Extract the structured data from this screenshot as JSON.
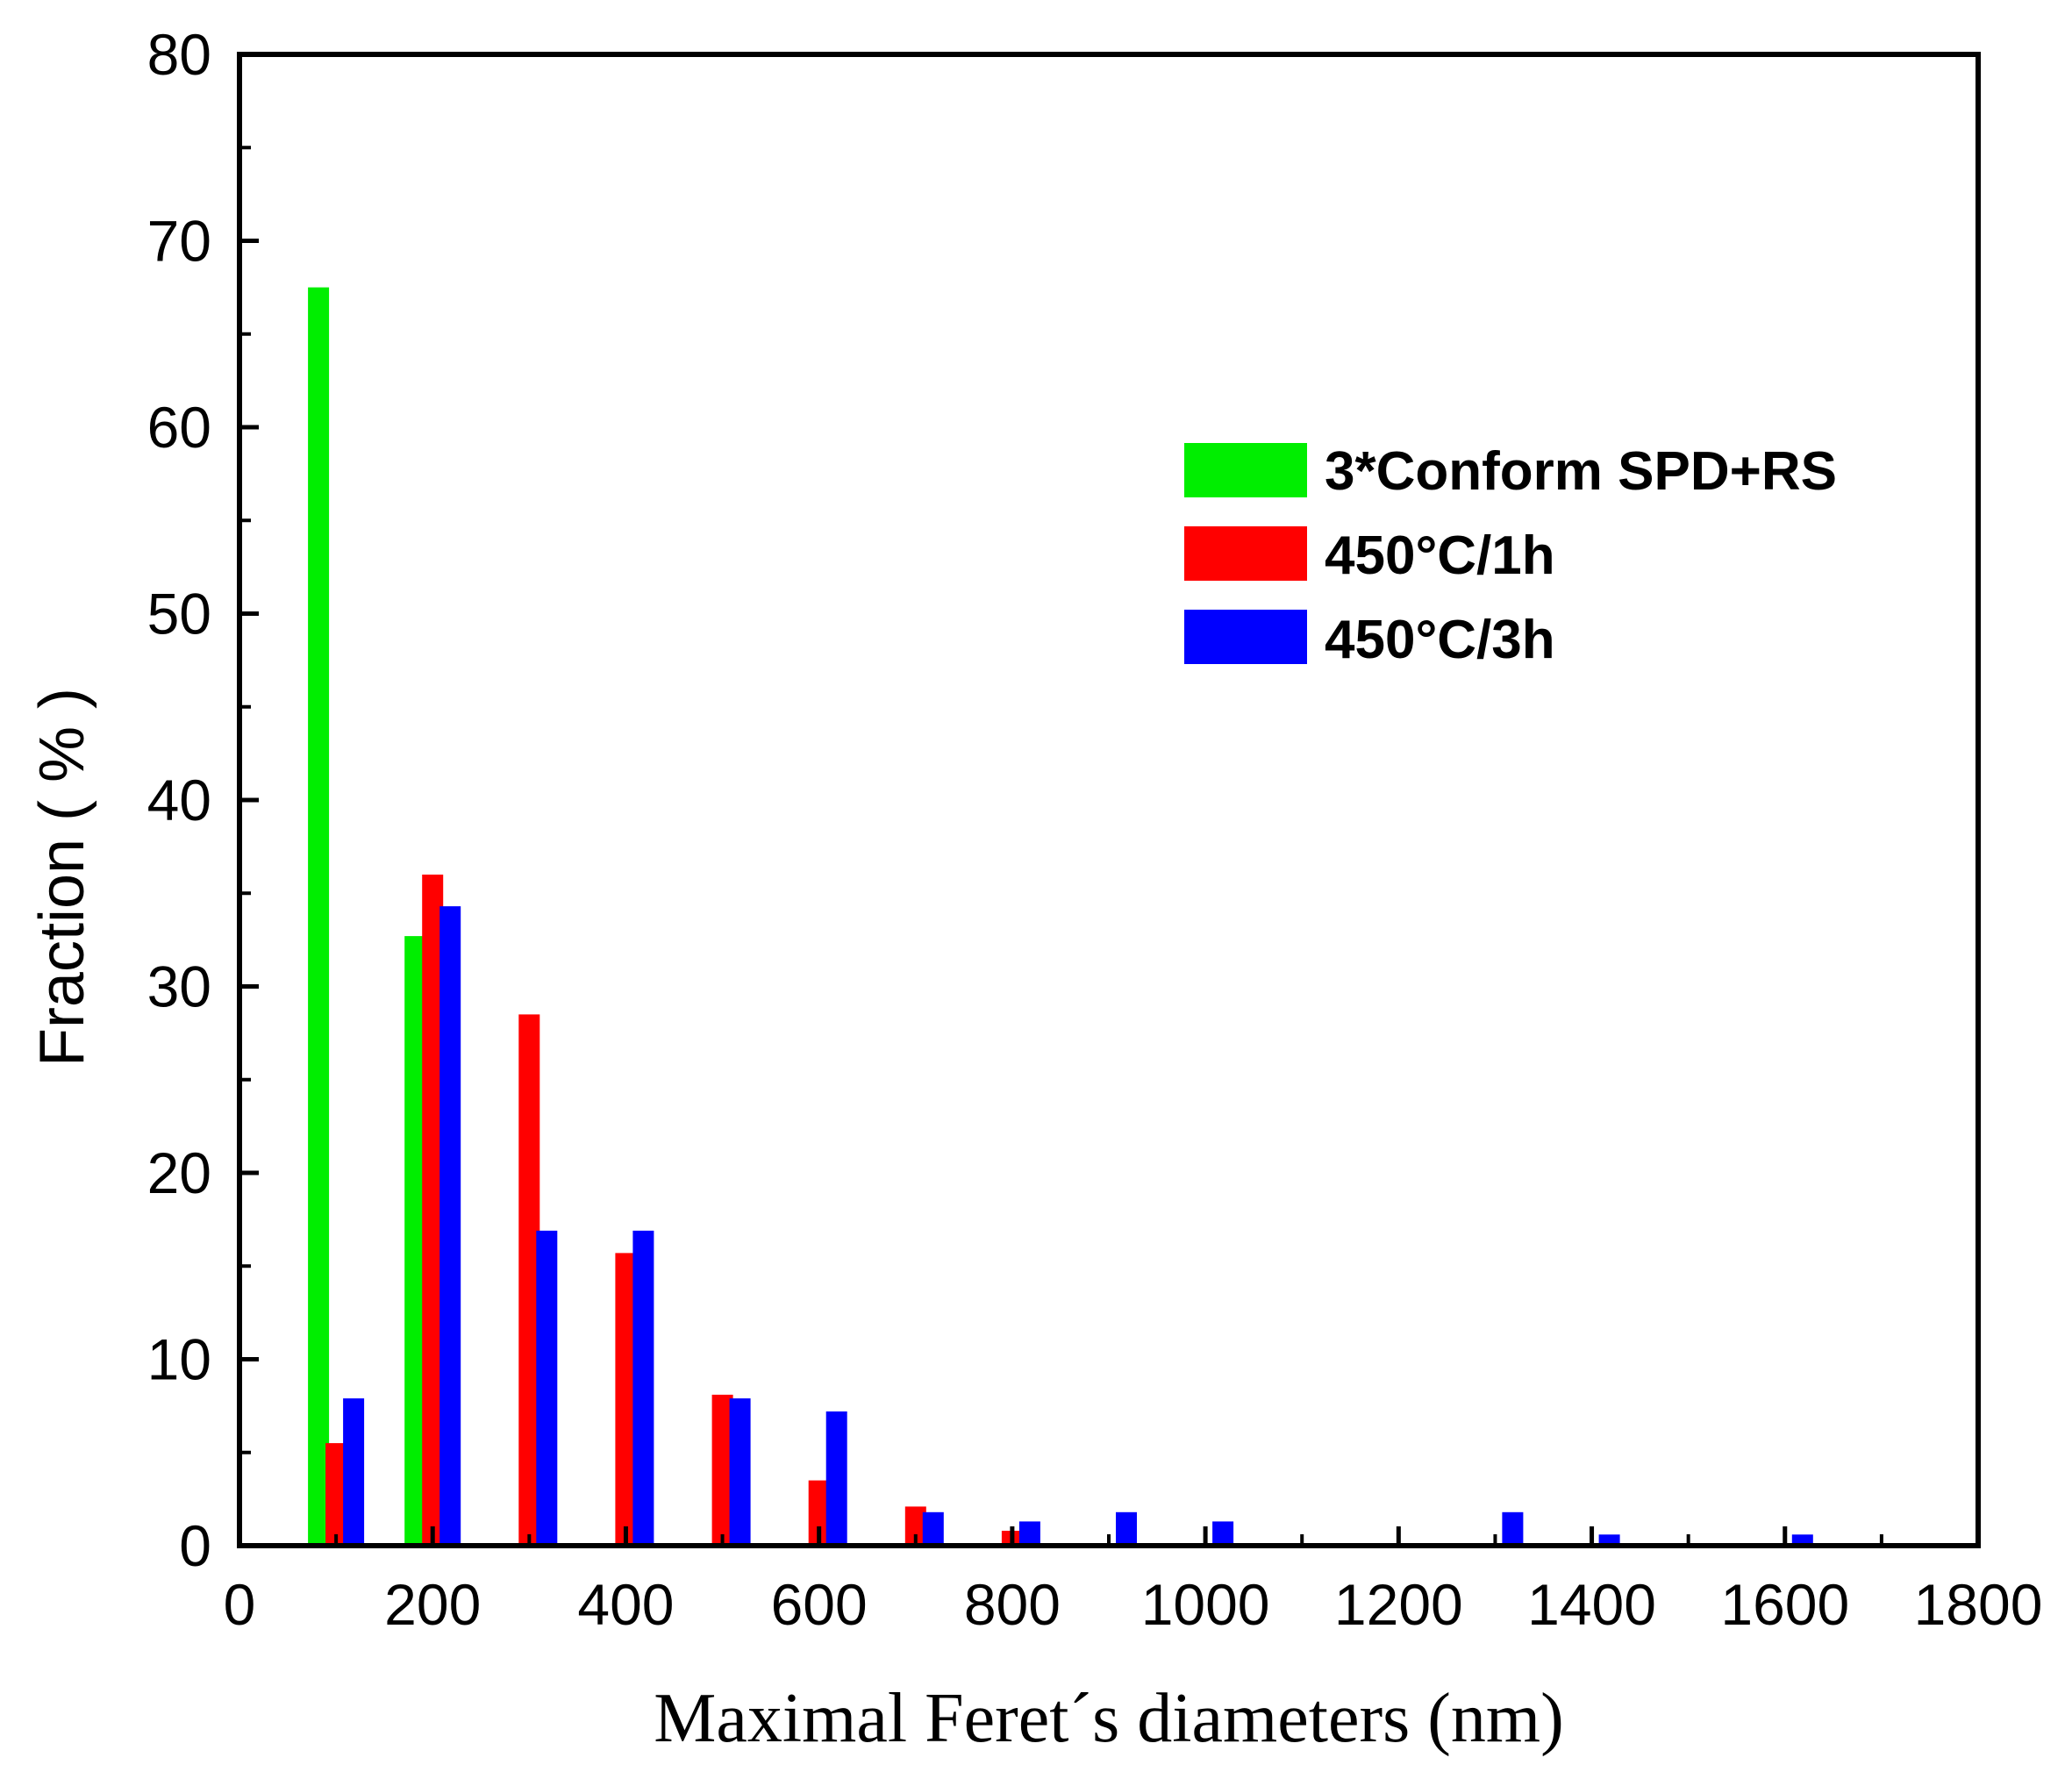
{
  "chart_data": {
    "type": "bar",
    "title": "",
    "xlabel": "Maximal Feret´s diameters (nm)",
    "ylabel": "Fraction ( % )",
    "xlim": [
      0,
      1800
    ],
    "ylim": [
      0,
      80
    ],
    "x_ticks": [
      0,
      200,
      400,
      600,
      800,
      1000,
      1200,
      1400,
      1600,
      1800
    ],
    "y_ticks": [
      0,
      10,
      20,
      30,
      40,
      50,
      60,
      70,
      80
    ],
    "legend_position": "upper-right",
    "bin_width": 100,
    "bins": [
      100,
      200,
      300,
      400,
      500,
      600,
      700,
      800,
      900,
      1000,
      1100,
      1200,
      1300,
      1400,
      1500,
      1600
    ],
    "series": [
      {
        "name": "3*Conform SPD+RS",
        "color": "#00ee00",
        "values": [
          67.5,
          32.7,
          0,
          0,
          0,
          0,
          0,
          0,
          0,
          0,
          0,
          0,
          0,
          0,
          0,
          0
        ]
      },
      {
        "name": "450°C/1h",
        "color": "#ff0000",
        "values": [
          5.5,
          36.0,
          28.5,
          15.7,
          8.1,
          3.5,
          2.1,
          0.8,
          0,
          0,
          0,
          0,
          0,
          0,
          0,
          0
        ]
      },
      {
        "name": "450°C/3h",
        "color": "#0000ff",
        "values": [
          7.9,
          34.3,
          16.9,
          16.9,
          7.9,
          7.2,
          1.8,
          1.3,
          1.8,
          1.3,
          0,
          0,
          1.8,
          0.6,
          0,
          0.6
        ]
      }
    ]
  }
}
